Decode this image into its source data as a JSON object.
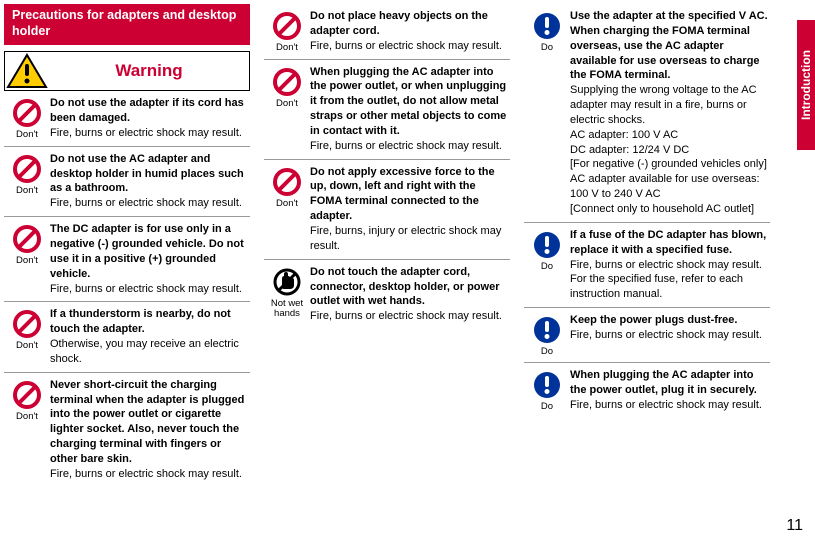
{
  "sideTab": "Introduction",
  "pageNumber": "11",
  "sectionHeader": "Precautions for adapters and desktop holder",
  "warningLabel": "Warning",
  "icons": {
    "dont": {
      "label": "Don't",
      "stroke": "#cc0033"
    },
    "do": {
      "label": "Do",
      "fill": "#003399"
    },
    "notwethands": {
      "label": "Not wet\nhands"
    }
  },
  "columns": [
    [
      {
        "icon": "dont",
        "bold": "Do not use the adapter if its cord has been damaged.",
        "plain": "Fire, burns or electric shock may result."
      },
      {
        "icon": "dont",
        "bold": "Do not use the AC adapter and desktop holder in humid places such as a bathroom.",
        "plain": "Fire, burns or electric shock may result."
      },
      {
        "icon": "dont",
        "bold": "The DC adapter is for use only in a negative (-) grounded vehicle. Do not use it in a positive (+) grounded vehicle.",
        "plain": "Fire, burns or electric shock may result."
      },
      {
        "icon": "dont",
        "bold": "If a thunderstorm is nearby, do not touch the adapter.",
        "plain": "Otherwise, you may receive an electric shock."
      },
      {
        "icon": "dont",
        "bold": "Never short-circuit the charging terminal when the adapter is plugged into the power outlet or cigarette lighter socket. Also, never touch the charging terminal with fingers or other bare skin.",
        "plain": "Fire, burns or electric shock may result."
      }
    ],
    [
      {
        "icon": "dont",
        "bold": "Do not place heavy objects on the adapter cord.",
        "plain": "Fire, burns or electric shock may result."
      },
      {
        "icon": "dont",
        "bold": "When plugging the AC adapter into the power outlet, or when unplugging it from the outlet, do not allow metal straps or other metal objects to come in contact with it.",
        "plain": "Fire, burns or electric shock may result."
      },
      {
        "icon": "dont",
        "bold": "Do not apply excessive force to the up, down, left and right with the FOMA terminal connected to the adapter.",
        "plain": "Fire, burns, injury or electric shock may result."
      },
      {
        "icon": "notwethands",
        "bold": "Do not touch the adapter cord, connector, desktop holder, or power outlet with wet hands.",
        "plain": "Fire, burns or electric shock may result."
      }
    ],
    [
      {
        "icon": "do",
        "bold": "Use the adapter at the specified V AC.\nWhen charging the FOMA terminal overseas, use the AC adapter available for use overseas to charge the FOMA terminal.",
        "plain": "Supplying the wrong voltage to the AC adapter may result in a fire, burns or electric shocks.\nAC adapter: 100 V AC\nDC adapter: 12/24 V DC\n[For negative (-) grounded vehicles only]\nAC adapter available for use overseas: 100 V to 240 V AC\n[Connect only to household AC outlet]"
      },
      {
        "icon": "do",
        "bold": "If a fuse of the DC adapter has blown, replace it with a specified fuse.",
        "plain": "Fire, burns or electric shock may result.\nFor the specified fuse, refer to each instruction manual."
      },
      {
        "icon": "do",
        "bold": "Keep the power plugs dust-free.",
        "plain": "Fire, burns or electric shock may result."
      },
      {
        "icon": "do",
        "bold": "When plugging the AC adapter into the power outlet, plug it in securely.",
        "plain": "Fire, burns or electric shock may result."
      }
    ]
  ]
}
